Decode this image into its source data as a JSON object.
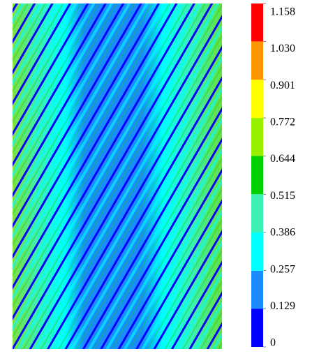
{
  "colorbar": {
    "ticks": [
      0,
      0.129,
      0.257,
      0.386,
      0.515,
      0.644,
      0.772,
      0.901,
      {
        "value": 1.03,
        "label": "1.030"
      },
      1.158
    ],
    "colors": [
      "#0000ff",
      "#1a8cff",
      "#00ffff",
      "#3cf0b4",
      "#00d200",
      "#96f000",
      "#ffff00",
      "#ff9600",
      "#ff0000"
    ]
  }
}
